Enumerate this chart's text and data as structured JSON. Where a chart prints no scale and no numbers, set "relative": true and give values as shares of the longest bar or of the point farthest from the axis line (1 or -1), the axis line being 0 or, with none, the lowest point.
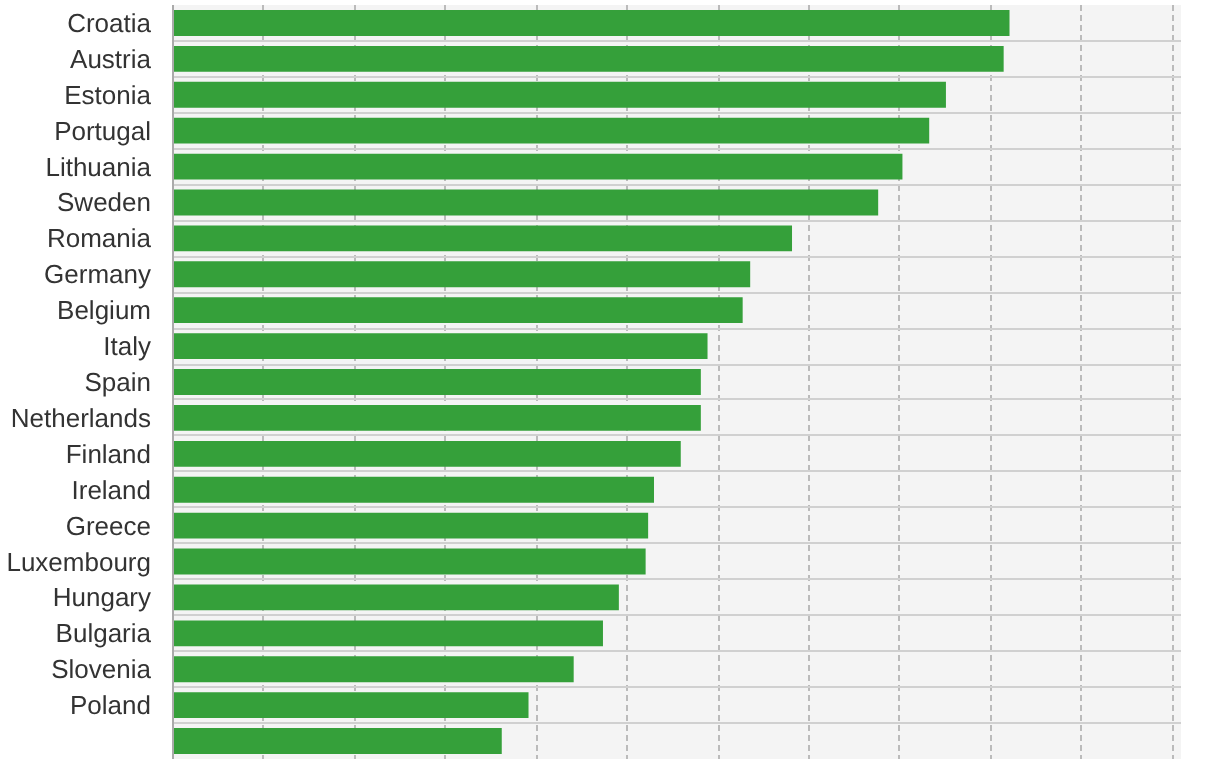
{
  "chart_data": {
    "type": "bar",
    "orientation": "horizontal",
    "relative": true,
    "grid": true,
    "categories": [
      "Croatia",
      "Austria",
      "Estonia",
      "Portugal",
      "Lithuania",
      "Sweden",
      "Romania",
      "Germany",
      "Belgium",
      "Italy",
      "Spain",
      "Netherlands",
      "Finland",
      "Ireland",
      "Greece",
      "Luxembourg",
      "Hungary",
      "Bulgaria",
      "Slovenia",
      "Poland",
      null
    ],
    "values": [
      1,
      0.993,
      0.924,
      0.904,
      0.872,
      0.843,
      0.74,
      0.69,
      0.681,
      0.639,
      0.631,
      0.631,
      0.607,
      0.575,
      0.568,
      0.565,
      0.533,
      0.514,
      0.479,
      0.425,
      0.393
    ],
    "color": "#35a03a"
  }
}
